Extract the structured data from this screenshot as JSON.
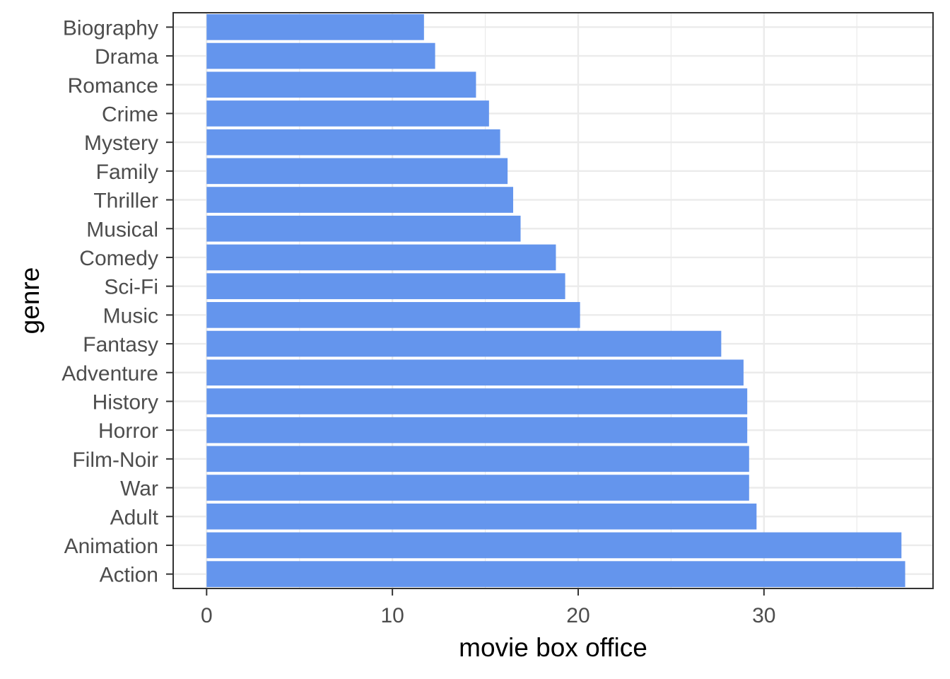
{
  "chart_data": {
    "type": "bar",
    "orientation": "horizontal",
    "xlabel": "movie box office",
    "ylabel": "genre",
    "xlim": [
      -1.8,
      39.1
    ],
    "xticks": [
      0,
      10,
      20,
      30
    ],
    "grid": true,
    "bar_color": "#6495ED",
    "categories": [
      "Biography",
      "Drama",
      "Romance",
      "Crime",
      "Mystery",
      "Family",
      "Thriller",
      "Musical",
      "Comedy",
      "Sci-Fi",
      "Music",
      "Fantasy",
      "Adventure",
      "History",
      "Horror",
      "Film-Noir",
      "War",
      "Adult",
      "Animation",
      "Action"
    ],
    "values": [
      11.7,
      12.3,
      14.5,
      15.2,
      15.8,
      16.2,
      16.5,
      16.9,
      18.8,
      19.3,
      20.1,
      27.7,
      28.9,
      29.1,
      29.1,
      29.2,
      29.2,
      29.6,
      37.4,
      37.6
    ]
  }
}
